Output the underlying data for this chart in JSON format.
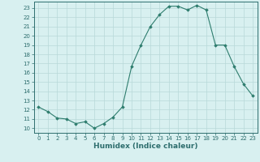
{
  "x": [
    0,
    1,
    2,
    3,
    4,
    5,
    6,
    7,
    8,
    9,
    10,
    11,
    12,
    13,
    14,
    15,
    16,
    17,
    18,
    19,
    20,
    21,
    22,
    23
  ],
  "y": [
    12.3,
    11.8,
    11.1,
    11.0,
    10.5,
    10.7,
    10.0,
    10.5,
    11.2,
    12.3,
    16.7,
    19.0,
    21.0,
    22.3,
    23.2,
    23.2,
    22.8,
    23.3,
    22.8,
    19.0,
    19.0,
    16.7,
    14.8,
    13.5
  ],
  "title": "",
  "xlabel": "Humidex (Indice chaleur)",
  "ylabel": "",
  "xlim": [
    -0.5,
    23.5
  ],
  "ylim": [
    9.5,
    23.7
  ],
  "yticks": [
    10,
    11,
    12,
    13,
    14,
    15,
    16,
    17,
    18,
    19,
    20,
    21,
    22,
    23
  ],
  "xticks": [
    0,
    1,
    2,
    3,
    4,
    5,
    6,
    7,
    8,
    9,
    10,
    11,
    12,
    13,
    14,
    15,
    16,
    17,
    18,
    19,
    20,
    21,
    22,
    23
  ],
  "line_color": "#2e7d6e",
  "marker": "D",
  "marker_size": 1.8,
  "bg_color": "#d8f0f0",
  "grid_color": "#b8d8d8",
  "font_color": "#2e6e6e",
  "tick_fontsize": 5.0,
  "xlabel_fontsize": 6.5
}
